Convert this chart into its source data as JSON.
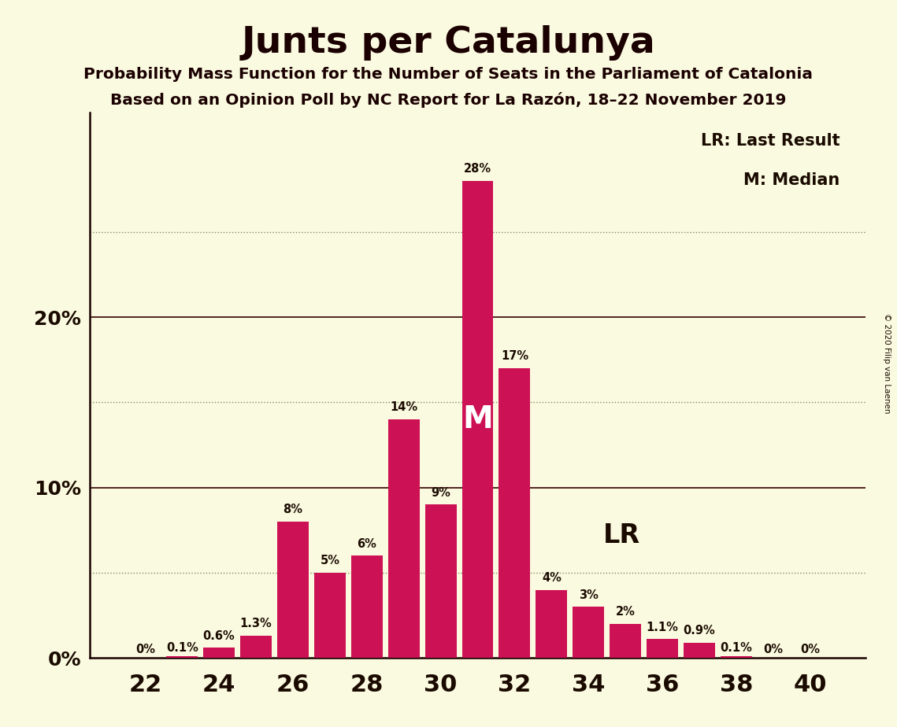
{
  "title": "Junts per Catalunya",
  "subtitle1": "Probability Mass Function for the Number of Seats in the Parliament of Catalonia",
  "subtitle2": "Based on an Opinion Poll by NC Report for La Razón, 18–22 November 2019",
  "copyright": "© 2020 Filip van Laenen",
  "seats": [
    22,
    23,
    24,
    25,
    26,
    27,
    28,
    29,
    30,
    31,
    32,
    33,
    34,
    35,
    36,
    37,
    38,
    39,
    40
  ],
  "probabilities": [
    0.0,
    0.1,
    0.6,
    1.3,
    8.0,
    5.0,
    6.0,
    14.0,
    9.0,
    28.0,
    17.0,
    4.0,
    3.0,
    2.0,
    1.1,
    0.9,
    0.1,
    0.0,
    0.0
  ],
  "labels": [
    "0%",
    "0.1%",
    "0.6%",
    "1.3%",
    "8%",
    "5%",
    "6%",
    "14%",
    "9%",
    "28%",
    "17%",
    "4%",
    "3%",
    "2%",
    "1.1%",
    "0.9%",
    "0.1%",
    "0%",
    "0%"
  ],
  "bar_color": "#CC1155",
  "background_color": "#FAFAE0",
  "text_color": "#1a0a00",
  "title_color": "#1a0000",
  "grid_solid_color": "#330000",
  "grid_dot_color": "#888866",
  "axis_color": "#1a0000",
  "ylim": [
    0,
    32
  ],
  "xlim": [
    20.5,
    41.5
  ],
  "median_seat": 31,
  "lr_seat": 34,
  "lr_label": "LR",
  "median_label": "M",
  "legend_lr": "LR: Last Result",
  "legend_m": "M: Median",
  "bar_width": 0.85
}
